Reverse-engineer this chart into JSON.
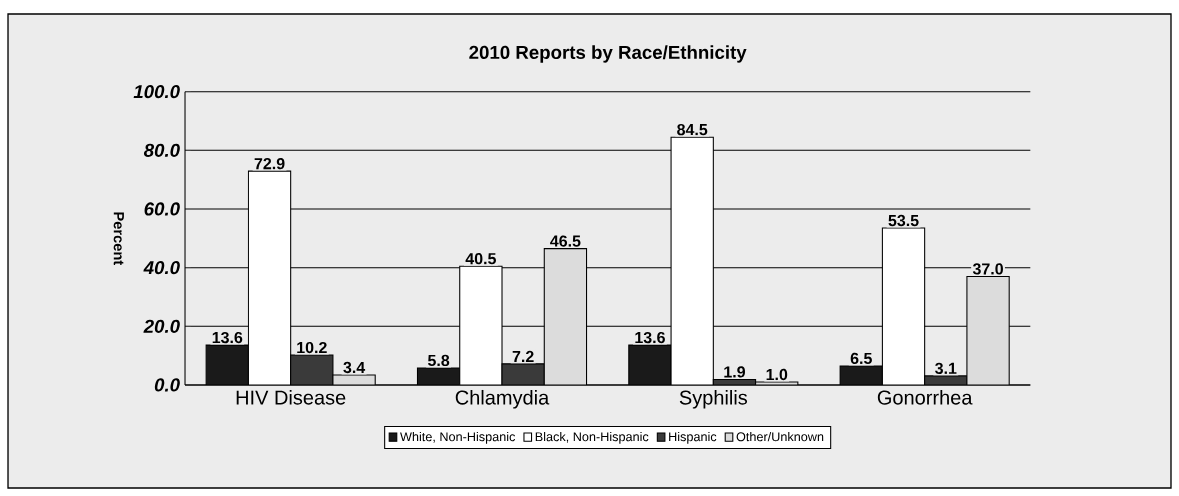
{
  "chart_data": {
    "type": "bar",
    "title": "2010 Reports by Race/Ethnicity",
    "ylabel": "Percent",
    "categories": [
      "HIV Disease",
      "Chlamydia",
      "Syphilis",
      "Gonorrhea"
    ],
    "series": [
      {
        "name": "White, Non-Hispanic",
        "color": "#1a1a1a",
        "values": [
          13.6,
          5.8,
          13.6,
          6.5
        ],
        "value_labels": [
          "13.6",
          "5.8",
          "13.6",
          "6.5"
        ]
      },
      {
        "name": "Black, Non-Hispanic",
        "color": "#ffffff",
        "values": [
          72.9,
          40.5,
          84.5,
          53.5
        ],
        "value_labels": [
          "72.9",
          "40.5",
          "84.5",
          "53.5"
        ]
      },
      {
        "name": "Hispanic",
        "color": "#3a3a3a",
        "values": [
          10.2,
          7.2,
          1.9,
          3.1
        ],
        "value_labels": [
          "10.2",
          "7.2",
          "1.9",
          "3.1"
        ]
      },
      {
        "name": "Other/Unknown",
        "color": "#dcdcdc",
        "values": [
          3.4,
          46.5,
          1.0,
          37.0
        ],
        "value_labels": [
          "3.4",
          "46.5",
          "1.0",
          "37.0"
        ]
      }
    ],
    "ylim": [
      0,
      100
    ],
    "yticks": [
      {
        "value": 0,
        "label": "0.0"
      },
      {
        "value": 20,
        "label": "20.0"
      },
      {
        "value": 40,
        "label": "40.0"
      },
      {
        "value": 60,
        "label": "60.0"
      },
      {
        "value": 80,
        "label": "80.0"
      },
      {
        "value": 100,
        "label": "100.0"
      }
    ],
    "grid": "y",
    "legend": "bottom"
  }
}
